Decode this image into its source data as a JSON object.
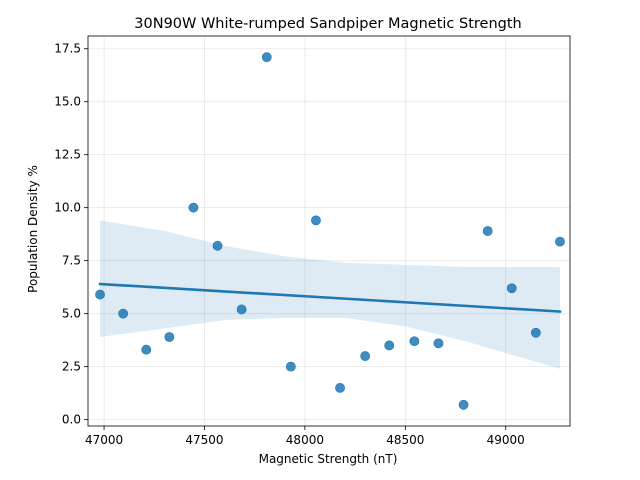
{
  "chart_data": {
    "type": "scatter",
    "title": "30N90W White-rumped Sandpiper Magnetic Strength",
    "xlabel": "Magnetic Strength (nT)",
    "ylabel": "Population Density %",
    "xlim": [
      46920,
      49320
    ],
    "ylim": [
      -0.3,
      18.1
    ],
    "xticks": [
      47000,
      47500,
      48000,
      48500,
      49000
    ],
    "xtick_labels": [
      "47000",
      "47500",
      "48000",
      "48500",
      "49000"
    ],
    "yticks": [
      0.0,
      2.5,
      5.0,
      7.5,
      10.0,
      12.5,
      15.0,
      17.5
    ],
    "ytick_labels": [
      "0.0",
      "2.5",
      "5.0",
      "7.5",
      "10.0",
      "12.5",
      "15.0",
      "17.5"
    ],
    "grid": true,
    "points": [
      {
        "x": 46980,
        "y": 5.9
      },
      {
        "x": 47095,
        "y": 5.0
      },
      {
        "x": 47210,
        "y": 3.3
      },
      {
        "x": 47325,
        "y": 3.9
      },
      {
        "x": 47445,
        "y": 10.0
      },
      {
        "x": 47565,
        "y": 8.2
      },
      {
        "x": 47685,
        "y": 5.2
      },
      {
        "x": 47810,
        "y": 17.1
      },
      {
        "x": 47930,
        "y": 2.5
      },
      {
        "x": 48055,
        "y": 9.4
      },
      {
        "x": 48175,
        "y": 1.5
      },
      {
        "x": 48300,
        "y": 3.0
      },
      {
        "x": 48420,
        "y": 3.5
      },
      {
        "x": 48545,
        "y": 3.7
      },
      {
        "x": 48665,
        "y": 3.6
      },
      {
        "x": 48790,
        "y": 0.7
      },
      {
        "x": 48910,
        "y": 8.9
      },
      {
        "x": 49030,
        "y": 6.2
      },
      {
        "x": 49150,
        "y": 4.1
      },
      {
        "x": 49270,
        "y": 8.4
      }
    ],
    "regression": {
      "x": [
        46980,
        49270
      ],
      "y": [
        6.4,
        5.1
      ]
    },
    "confidence_band": {
      "x": [
        46980,
        47300,
        47600,
        47900,
        48200,
        48500,
        48800,
        49050,
        49270
      ],
      "upper": [
        9.4,
        8.9,
        8.2,
        7.7,
        7.4,
        7.3,
        7.2,
        7.2,
        7.2
      ],
      "lower": [
        3.9,
        4.3,
        4.7,
        4.8,
        4.8,
        4.4,
        3.7,
        3.0,
        2.4
      ]
    },
    "colors": {
      "points": "#1f77b4",
      "line": "#1f77b4",
      "band": "#1f77b4"
    }
  }
}
